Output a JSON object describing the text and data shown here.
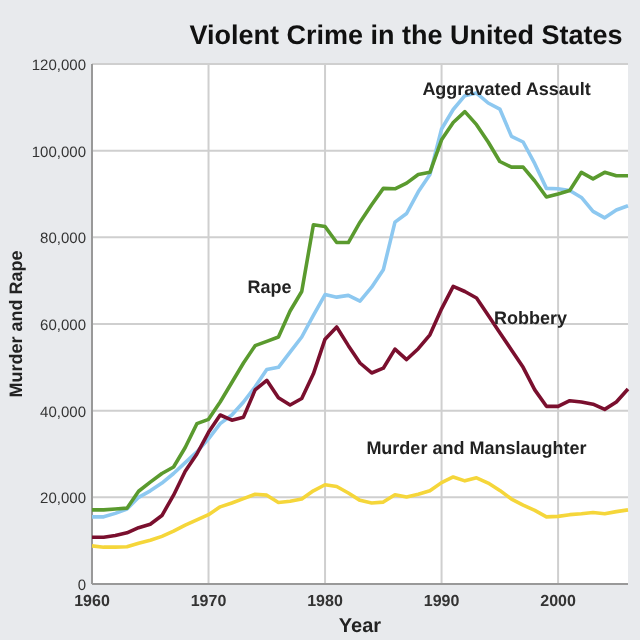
{
  "chart_data": {
    "type": "line",
    "title": "Violent Crime in the United States",
    "xlabel": "Year",
    "ylabel": "Murder and Rape",
    "x": [
      1960,
      1961,
      1962,
      1963,
      1964,
      1965,
      1966,
      1967,
      1968,
      1969,
      1970,
      1971,
      1972,
      1973,
      1974,
      1975,
      1976,
      1977,
      1978,
      1979,
      1980,
      1981,
      1982,
      1983,
      1984,
      1985,
      1986,
      1987,
      1988,
      1989,
      1990,
      1991,
      1992,
      1993,
      1994,
      1995,
      1996,
      1997,
      1998,
      1999,
      2000,
      2001,
      2002,
      2003,
      2004,
      2005,
      2006
    ],
    "series": [
      {
        "name": "Aggravated Assault",
        "color": "#8dc8f0",
        "values": [
          15500,
          15500,
          16300,
          17300,
          20000,
          21500,
          23300,
          25500,
          28000,
          30500,
          33500,
          37000,
          39000,
          42000,
          45500,
          49500,
          50000,
          53500,
          57000,
          62000,
          66800,
          66200,
          66600,
          65300,
          68500,
          72500,
          83500,
          85500,
          90500,
          94500,
          105000,
          109500,
          112700,
          113300,
          111000,
          109600,
          103300,
          102000,
          97000,
          91300,
          91200,
          90800,
          89200,
          86000,
          84500,
          86300,
          87300
        ]
      },
      {
        "name": "Rape",
        "color": "#5a9a2e",
        "values": [
          17100,
          17100,
          17300,
          17500,
          21400,
          23500,
          25500,
          27000,
          31500,
          37000,
          38000,
          42000,
          46500,
          51000,
          55000,
          56000,
          57000,
          63000,
          67500,
          82900,
          82500,
          78800,
          78800,
          83500,
          87500,
          91300,
          91200,
          92500,
          94500,
          95000,
          102500,
          106500,
          109000,
          106000,
          102000,
          97500,
          96200,
          96200,
          93000,
          89300,
          90000,
          90800,
          95000,
          93500,
          95000,
          94200,
          94200
        ]
      },
      {
        "name": "Robbery",
        "color": "#7a0f2e",
        "values": [
          10800,
          10800,
          11200,
          11800,
          13000,
          13800,
          15800,
          20500,
          26000,
          30000,
          35000,
          39000,
          37800,
          38500,
          44800,
          47000,
          43000,
          41300,
          42800,
          48500,
          56500,
          59300,
          55000,
          51000,
          48700,
          49800,
          54200,
          51800,
          54300,
          57500,
          63500,
          68700,
          67500,
          66000,
          62000,
          58000,
          54000,
          50000,
          44800,
          41000,
          41000,
          42300,
          42000,
          41500,
          40300,
          42000,
          45000
        ]
      },
      {
        "name": "Murder and Manslaughter",
        "color": "#f5d63a",
        "values": [
          8800,
          8500,
          8500,
          8600,
          9400,
          10100,
          11000,
          12200,
          13600,
          14800,
          16000,
          17800,
          18700,
          19700,
          20700,
          20500,
          18800,
          19100,
          19600,
          21500,
          22900,
          22500,
          21000,
          19300,
          18700,
          18900,
          20600,
          20100,
          20700,
          21500,
          23400,
          24700,
          23800,
          24500,
          23300,
          21600,
          19600,
          18200,
          17000,
          15500,
          15600,
          16000,
          16200,
          16500,
          16200,
          16700,
          17100
        ]
      }
    ],
    "xlim": [
      1960,
      2006
    ],
    "xticks": [
      1960,
      1970,
      1980,
      1990,
      2000
    ],
    "ylim": [
      0,
      120000
    ],
    "yticks": [
      {
        "value": 0,
        "label": "0"
      },
      {
        "value": 20000,
        "label": "20,000"
      },
      {
        "value": 40000,
        "label": "40,000"
      },
      {
        "value": 60000,
        "label": "60,000"
      },
      {
        "value": 80000,
        "label": "80,000"
      },
      {
        "value": 100000,
        "label": "100,000"
      },
      {
        "value": 120000,
        "label": "120,000"
      }
    ],
    "grid": true
  }
}
